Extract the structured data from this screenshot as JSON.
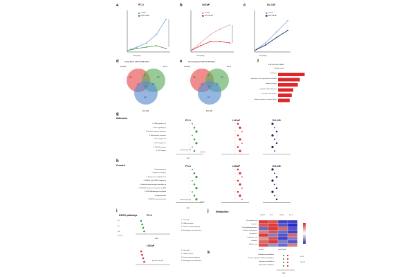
{
  "panels": {
    "a": {
      "letter": "a",
      "title": "PC-3",
      "legend": [
        "siCTRL",
        "siDPYSL3B"
      ],
      "xlabel": "Time (days)",
      "ylabel": "Proliferation (relative confluence)",
      "yticks": [
        "0",
        "5",
        "10",
        "15"
      ],
      "xticks": [
        "0",
        "1",
        "2",
        "3",
        "4"
      ]
    },
    "b": {
      "letter": "b",
      "title": "LNCaP",
      "legend": [
        "siCTRL",
        "siDPYSL3B"
      ],
      "xlabel": "Time (days)",
      "ylabel": "Proliferation (relative confluence)",
      "yticks": [
        "0",
        "1",
        "2",
        "3",
        "4"
      ],
      "xticks": [
        "0",
        "1",
        "2",
        "3",
        "4"
      ]
    },
    "c": {
      "letter": "c",
      "title": "DU-145",
      "legend": [
        "siCTRL",
        "siDPYSL3B"
      ],
      "xlabel": "Time (days)",
      "ylabel": "Proliferation (relative confluence)",
      "yticks": [
        "0",
        "1",
        "2",
        "3",
        "4",
        "5"
      ],
      "xticks": [
        "0",
        "1",
        "2",
        "3"
      ]
    },
    "d": {
      "letter": "d",
      "title": "Upregulated siDPYSL3B DEGs",
      "sets": [
        "LNCaP",
        "PC-3",
        "DU-145"
      ],
      "counts": [
        "802",
        "81",
        "893",
        "53",
        "212",
        "28",
        "660"
      ]
    },
    "e": {
      "letter": "e",
      "title": "Downregulated siDPYSL3B DEGs",
      "sets": [
        "LNCaP",
        "PC-3",
        "DU-145"
      ],
      "counts": [
        "669",
        "38",
        "644",
        "130",
        "227",
        "35",
        "622"
      ]
    },
    "f": {
      "letter": "f",
      "title": "138 common DEGs",
      "axis": "-log10(p-value)",
      "terms": [
        "Cell Cycle",
        "regulation of cell cycle phase transition",
        "mitotic cell cycle",
        "myeloid cell development",
        "Cell Cycle Checkpoints",
        "cellular response to nutrient levels"
      ],
      "values": [
        10.5,
        8.6,
        7.8,
        6.0,
        5.4,
        4.6
      ]
    },
    "g": {
      "letter": "g",
      "section": "Hallmarks",
      "cols": [
        "PC-3",
        "LNCaP",
        "DU-145"
      ],
      "terms": [
        "1. TNFA signaling via",
        "2. Kras signaling up",
        "3. Interferon gamma response",
        "4. Inflammatory response",
        "5. MYC targets V2",
        "6. MYC targets V1",
        "7. G2M Checkpoint",
        "8. E2F Targets"
      ],
      "xlabel": "NES",
      "pvalue": "p-value (-log 10)",
      "size_label": "set (%)",
      "size_ticks": [
        "10",
        "50",
        "100"
      ]
    },
    "h": {
      "letter": "h",
      "section": "Curated",
      "cols": [
        "PC-3",
        "LNCaP",
        "DU-145"
      ],
      "terms": [
        "1. Senescence up",
        "2. Hypoxia mutagene",
        "3. Response to adaptation up",
        "4. HDAC1 and KDAC2 targets up",
        "5. Epithelial mesenchymal transition up",
        "6. DNA IR damage and response via ATM",
        "7. G2M DNA damage checkpoint",
        "8. Hypoxia down",
        "9. BRCA centered network"
      ],
      "xlabel": "NES",
      "pvalue": "p-value (-log 10)",
      "size_label": "set (%)",
      "size_ticks": [
        "10",
        "50",
        "100"
      ]
    },
    "i": {
      "letter": "i",
      "section": "KEGG pathways",
      "cols": [
        "PC-3",
        "LNCaP"
      ],
      "terms": [
        "1. Cell cycle",
        "2. DNA replication",
        "3. Fanconi anemia pathway",
        "4. Homologous recombination"
      ],
      "xlabel": "NES",
      "pvalue": "p-value (-log 10)",
      "size_label": "set (%)",
      "size_ticks": [
        "10",
        "50",
        "100"
      ]
    },
    "j": {
      "letter": "j",
      "title": "Metabolites",
      "rows": [
        "Cis-aconitic acid",
        "L-cystine",
        "2'-methylthioadenosine",
        "D-ribose 5-phosphate",
        "Glutathione",
        "L-glutamic acid",
        "L-alanine",
        "Myristic acid"
      ],
      "cols": [
        "LNCaP",
        "PC-3",
        "LNCaP",
        "PC-3"
      ],
      "groups": [
        "siCTRL",
        "siDPYSL3B"
      ],
      "scale_label": "Row Z-score",
      "values": [
        [
          0.9,
          0.8,
          -0.9,
          -0.9
        ],
        [
          0.8,
          0.9,
          -0.8,
          -1.0
        ],
        [
          -0.7,
          0.9,
          0.7,
          -0.8
        ],
        [
          0.6,
          0.8,
          -0.7,
          -0.9
        ],
        [
          0.9,
          -0.6,
          -0.8,
          0.7
        ],
        [
          0.5,
          0.8,
          -0.9,
          -0.6
        ],
        [
          0.7,
          0.9,
          -0.6,
          -0.8
        ],
        [
          0.8,
          -0.5,
          -0.7,
          0.6
        ]
      ]
    },
    "k": {
      "letter": "k",
      "rows": [
        "Glutathione metabolism",
        "Positive regulation of ROS metabolism",
        "Pyrimidine metabolism",
        "Nucleotide metabolism"
      ],
      "cols": [
        "PC-3",
        "LNCaP"
      ],
      "xlabel": "NES",
      "size_label": "set (%)"
    }
  },
  "colors": {
    "ctrl": "#7aa4d6",
    "kd_green": "#3a9a3a",
    "kd_red": "#d9262e",
    "kd_navy": "#1b1f5e",
    "venn_red": "#e8504f",
    "venn_green": "#5fae5f",
    "venn_blue": "#5b8fd0",
    "bar": "#e0262a"
  }
}
